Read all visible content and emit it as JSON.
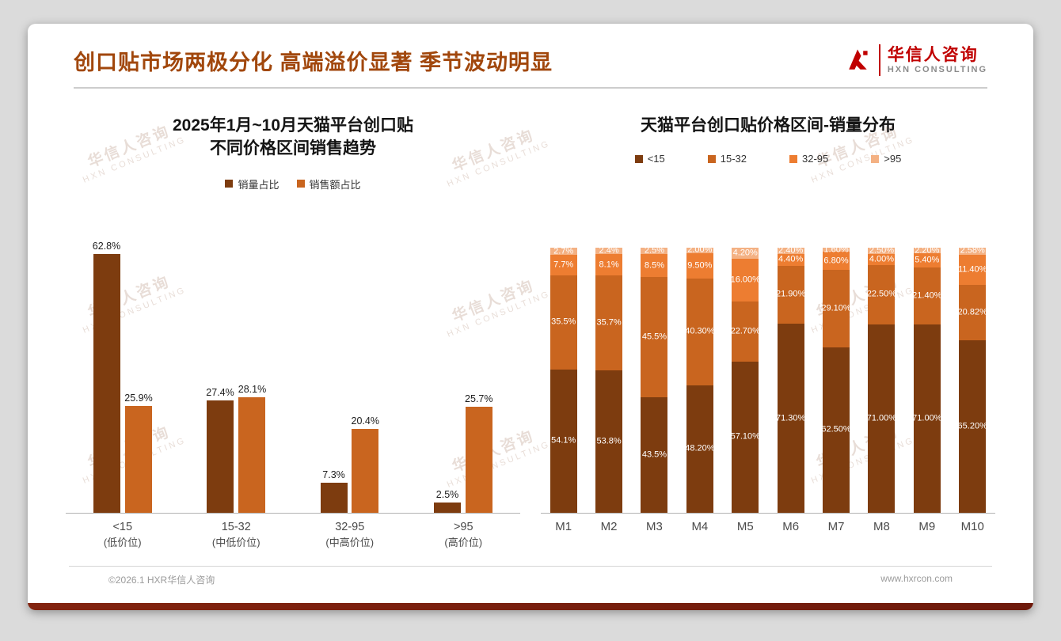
{
  "page": {
    "title": "创口贴市场两极分化 高端溢价显著 季节波动明显",
    "footer_left": "©2026.1 HXR华信人咨询",
    "footer_right": "www.hxrcon.com",
    "watermark_line1": "华信人咨询",
    "watermark_line2": "HXN CONSULTING",
    "accent_color": "#A1470C",
    "bottom_bar_color": "#7A200F"
  },
  "logo": {
    "name": "华信人咨询",
    "subtitle": "HXN CONSULTING",
    "color": "#C00000"
  },
  "chart_data": [
    {
      "type": "bar",
      "title_lines": [
        "2025年1月~10月天猫平台创口贴",
        "不同价格区间销售趋势"
      ],
      "title": "2025年1月~10月天猫平台创口贴 不同价格区间销售趋势",
      "xlabel": "",
      "ylabel": "",
      "ylim": [
        0,
        70
      ],
      "grid": false,
      "legend_position": "top",
      "categories": [
        [
          "<15",
          "(低价位)"
        ],
        [
          "15-32",
          "(中低价位)"
        ],
        [
          "32-95",
          "(中高价位)"
        ],
        [
          ">95",
          "(高价位)"
        ]
      ],
      "series": [
        {
          "name": "销量占比",
          "color": "#7D3C0F",
          "values": [
            62.8,
            27.4,
            7.3,
            2.5
          ],
          "labels": [
            "62.8%",
            "27.4%",
            "7.3%",
            "2.5%"
          ]
        },
        {
          "name": "销售额占比",
          "color": "#C9651F",
          "values": [
            25.9,
            28.1,
            20.4,
            25.7
          ],
          "labels": [
            "25.9%",
            "28.1%",
            "20.4%",
            "25.7%"
          ]
        }
      ]
    },
    {
      "type": "stacked-bar",
      "title": "天猫平台创口贴价格区间-销量分布",
      "xlabel": "",
      "ylabel": "",
      "ylim": [
        0,
        100
      ],
      "grid": false,
      "legend_position": "top",
      "categories": [
        "M1",
        "M2",
        "M3",
        "M4",
        "M5",
        "M6",
        "M7",
        "M8",
        "M9",
        "M10"
      ],
      "series": [
        {
          "name": "<15",
          "color": "#7D3C0F",
          "values": [
            54.1,
            53.8,
            43.5,
            48.2,
            57.1,
            71.3,
            62.5,
            71.0,
            71.0,
            65.2
          ],
          "labels": [
            "54.1%",
            "53.8%",
            "43.5%",
            "48.20%",
            "57.10%",
            "71.30%",
            "62.50%",
            "71.00%",
            "71.00%",
            "65.20%"
          ]
        },
        {
          "name": "15-32",
          "color": "#C9651F",
          "values": [
            35.5,
            35.7,
            45.5,
            40.3,
            22.7,
            21.9,
            29.1,
            22.5,
            21.4,
            20.82
          ],
          "labels": [
            "35.5%",
            "35.7%",
            "45.5%",
            "40.30%",
            "22.70%",
            "21.90%",
            "29.10%",
            "22.50%",
            "21.40%",
            "20.82%"
          ]
        },
        {
          "name": "32-95",
          "color": "#ED7D31",
          "values": [
            7.7,
            8.1,
            8.5,
            9.5,
            16.0,
            4.4,
            6.8,
            4.0,
            5.4,
            11.4
          ],
          "labels": [
            "7.7%",
            "8.1%",
            "8.5%",
            "9.50%",
            "16.00%",
            "4.40%",
            "6.80%",
            "4.00%",
            "5.40%",
            "11.40%"
          ]
        },
        {
          "name": ">95",
          "color": "#F4B183",
          "values": [
            2.7,
            2.4,
            2.5,
            2.0,
            4.2,
            2.4,
            1.6,
            2.5,
            2.2,
            2.58
          ],
          "labels": [
            "2.7%",
            "2.4%",
            "2.5%",
            "2.00%",
            "4.20%",
            "2.40%",
            "1.60%",
            "2.50%",
            "2.20%",
            "2.58%"
          ]
        }
      ]
    }
  ]
}
